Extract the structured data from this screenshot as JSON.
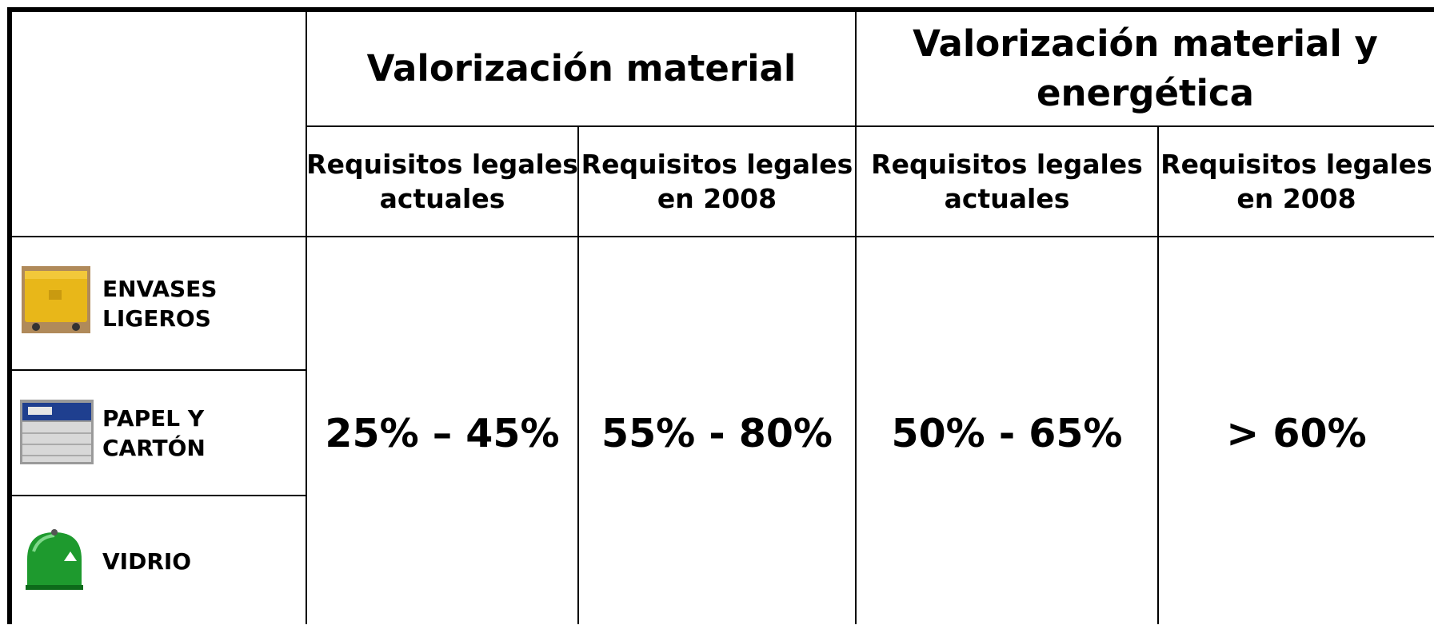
{
  "table": {
    "groups": [
      {
        "lines": [
          "Valorización material"
        ]
      },
      {
        "lines": [
          "Valorización material y",
          "energética"
        ]
      }
    ],
    "subheaders": [
      {
        "lines": [
          "Requisitos legales",
          "actuales"
        ]
      },
      {
        "lines": [
          "Requisitos legales",
          "en 2008"
        ]
      },
      {
        "lines": [
          "Requisitos legales",
          "actuales"
        ]
      },
      {
        "lines": [
          "Requisitos legales",
          "en 2008"
        ]
      }
    ],
    "materials": [
      {
        "lines": [
          "ENVASES",
          "LIGEROS"
        ]
      },
      {
        "lines": [
          "PAPEL Y",
          "CARTÓN"
        ]
      },
      {
        "lines": [
          "VIDRIO"
        ]
      }
    ],
    "values": [
      "25% – 45%",
      "55% - 80%",
      "50% - 65%",
      "> 60%"
    ]
  }
}
